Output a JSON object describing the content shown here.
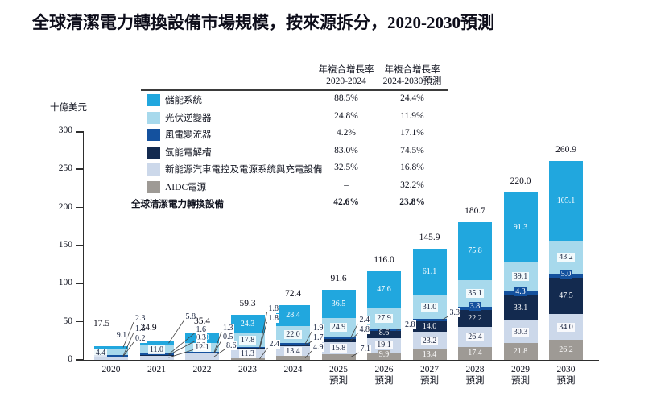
{
  "title": "全球清潔電力轉換設備市場規模，按來源拆分，2020-2030預測",
  "legend": {
    "col1_header": [
      "年複合增長率",
      "2020-2024"
    ],
    "col2_header": [
      "年複合增長率",
      "2024-2030預測"
    ]
  },
  "chart_data": {
    "type": "bar",
    "stacked": true,
    "title": "全球清潔電力轉換設備市場規模，按來源拆分，2020-2030預測",
    "xlabel": "",
    "ylabel": "十億美元",
    "ylim": [
      0,
      300
    ],
    "yticks": [
      0,
      50,
      100,
      150,
      200,
      250,
      300
    ],
    "grid": false,
    "legend_position": "upper-left",
    "categories": [
      "2020",
      "2021",
      "2022",
      "2023",
      "2024",
      "2025",
      "2026",
      "2027",
      "2028",
      "2029",
      "2030"
    ],
    "forecast_label": "預測",
    "forecast_from_index": 5,
    "series": [
      {
        "name": "儲能系統",
        "color": "#21A7DE",
        "values": [
          2.3,
          5.8,
          12.9,
          24.3,
          28.4,
          36.5,
          47.6,
          61.1,
          75.8,
          91.3,
          105.1
        ],
        "cagr_2020_2024": "88.5%",
        "cagr_2024_2030": "24.4%"
      },
      {
        "name": "光伏逆變器",
        "color": "#A7D9EC",
        "values": [
          9.1,
          11.0,
          12.1,
          17.8,
          22.0,
          24.9,
          27.9,
          31.0,
          35.1,
          39.1,
          43.2
        ],
        "cagr_2020_2024": "24.8%",
        "cagr_2024_2030": "11.9%"
      },
      {
        "name": "風電變流器",
        "color": "#14519E",
        "values": [
          1.6,
          1.6,
          1.3,
          1.8,
          1.9,
          2.4,
          2.8,
          3.3,
          3.8,
          4.3,
          5.0
        ],
        "cagr_2020_2024": "4.2%",
        "cagr_2024_2030": "17.1%"
      },
      {
        "name": "氫能電解槽",
        "color": "#132A4F",
        "values": [
          0.2,
          0.3,
          0.5,
          1.8,
          1.7,
          4.8,
          8.6,
          14.0,
          22.2,
          33.1,
          47.5
        ],
        "cagr_2020_2024": "83.0%",
        "cagr_2024_2030": "74.5%"
      },
      {
        "name": "新能源汽車電控及電源系統與充電設備",
        "color": "#CCD8EA",
        "values": [
          4.4,
          6.2,
          8.6,
          11.3,
          13.4,
          15.8,
          19.1,
          23.2,
          26.4,
          30.3,
          34.0
        ],
        "cagr_2020_2024": "32.5%",
        "cagr_2024_2030": "16.8%"
      },
      {
        "name": "AIDC電源",
        "color": "#9E9A95",
        "values": [
          null,
          null,
          null,
          2.4,
          4.9,
          7.1,
          9.9,
          13.4,
          17.4,
          21.8,
          26.2
        ],
        "cagr_2020_2024": "–",
        "cagr_2024_2030": "32.2%"
      }
    ],
    "totals": [
      17.5,
      24.9,
      35.4,
      59.3,
      72.4,
      91.6,
      116.0,
      145.9,
      180.7,
      220.0,
      260.9
    ],
    "total_row": {
      "name": "全球清潔電力轉換設備",
      "cagr_2020_2024": "42.6%",
      "cagr_2024_2030": "23.8%"
    }
  }
}
